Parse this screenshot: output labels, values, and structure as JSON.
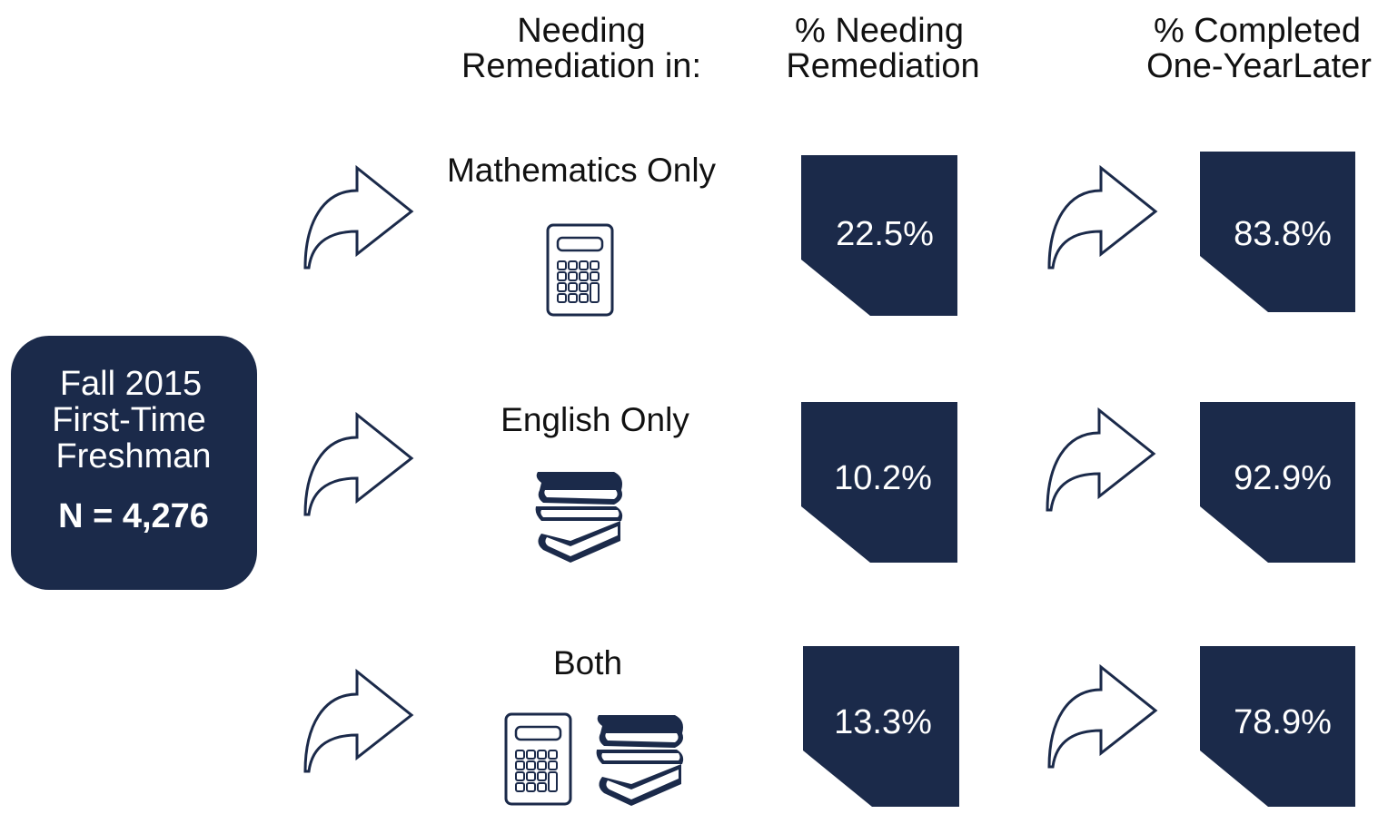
{
  "headers": [
    {
      "lines": [
        "Needing",
        "Remediation in:"
      ]
    },
    {
      "lines": [
        "% Needing",
        "Remediation"
      ]
    },
    {
      "lines": [
        "% Completed",
        "One-YearLater"
      ]
    }
  ],
  "cohort": {
    "lines": [
      "Fall 2015",
      "First-Time",
      "Freshman"
    ],
    "n": "N = 4,276"
  },
  "rows": [
    {
      "label": "Mathematics Only",
      "needing": "22.5%",
      "completed": "83.8%"
    },
    {
      "label": "English Only",
      "needing": "10.2%",
      "completed": "92.9%"
    },
    {
      "label": "Both",
      "needing": "13.3%",
      "completed": "78.9%"
    }
  ]
}
